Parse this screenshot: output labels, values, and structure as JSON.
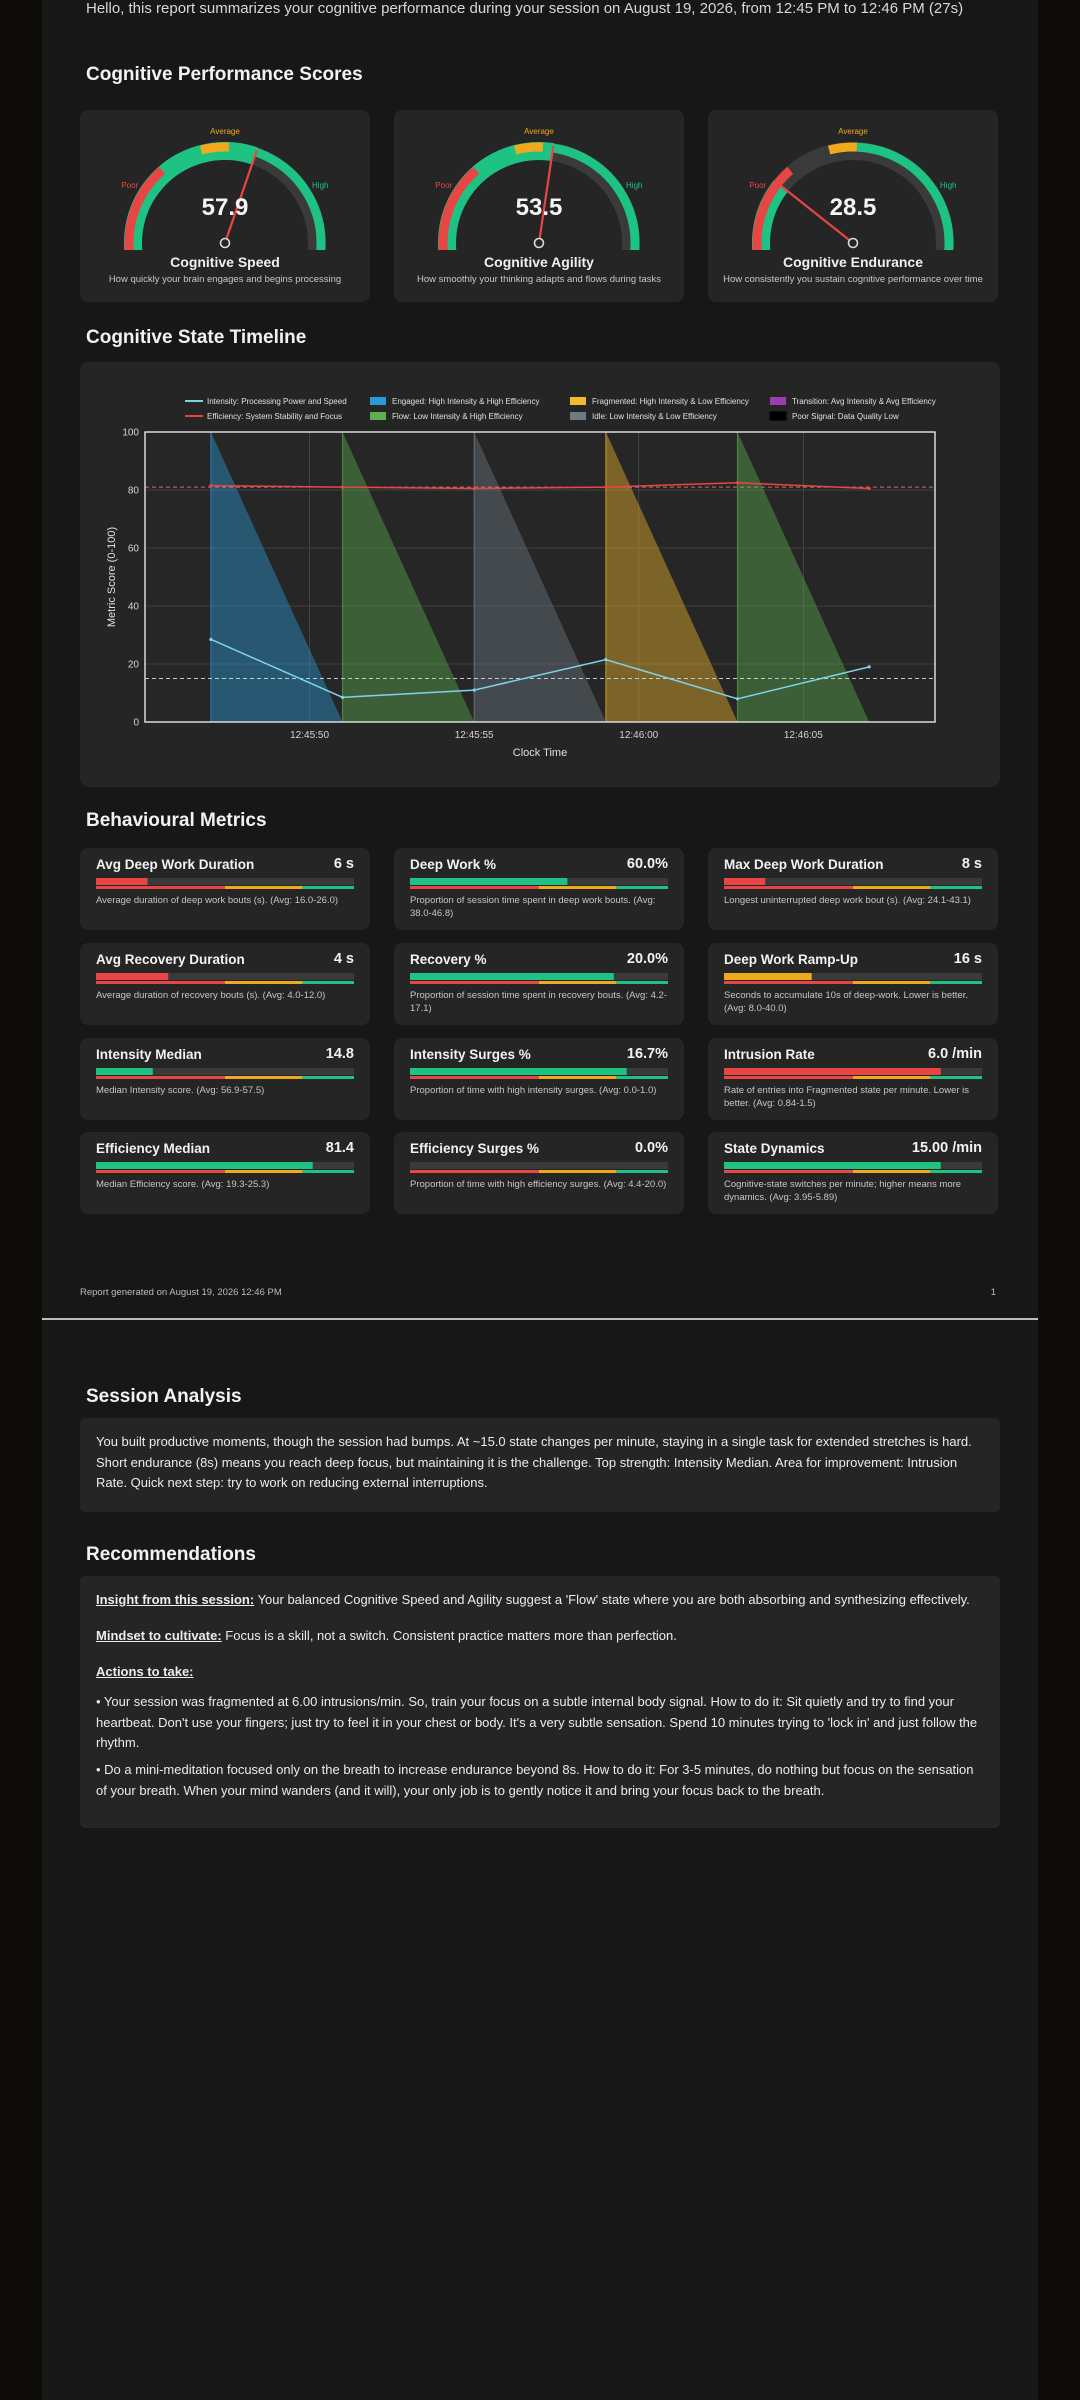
{
  "intro": "Hello, this report summarizes your cognitive performance during your session on August 19, 2026, from 12:45 PM to 12:46 PM (27s)",
  "sections": {
    "scores": "Cognitive Performance Scores",
    "timeline": "Cognitive State Timeline",
    "behaviour": "Behavioural Metrics",
    "analysis": "Session Analysis",
    "recommendations": "Recommendations"
  },
  "gauges": [
    {
      "value": "57.9",
      "score": 57.9,
      "title": "Cognitive Speed",
      "desc": "How quickly your brain engages and begins processing",
      "labels": {
        "poor": "Poor",
        "average": "Average",
        "high": "High"
      }
    },
    {
      "value": "53.5",
      "score": 53.5,
      "title": "Cognitive Agility",
      "desc": "How smoothly your thinking adapts and flows during tasks",
      "labels": {
        "poor": "Poor",
        "average": "Average",
        "high": "High"
      }
    },
    {
      "value": "28.5",
      "score": 28.5,
      "title": "Cognitive Endurance",
      "desc": "How consistently you sustain cognitive performance over time",
      "labels": {
        "poor": "Poor",
        "average": "Average",
        "high": "High"
      }
    }
  ],
  "colors": {
    "poor": "#e84545",
    "average": "#f0a81c",
    "high": "#1ec384",
    "track": "#3a3a3a",
    "engaged": "#2b9bd8",
    "flow": "#5cae4f",
    "fragmented": "#f2b92b",
    "idle": "#6c7a84",
    "transition": "#9b3cb0"
  },
  "chart_data": {
    "type": "line",
    "title": "",
    "xlabel": "Clock Time",
    "ylabel": "Metric Score (0-100)",
    "ylim": [
      0,
      100
    ],
    "yticks": [
      "0",
      "20",
      "40",
      "60",
      "80",
      "100"
    ],
    "xticks": [
      "12:45:50",
      "12:45:55",
      "12:46:00",
      "12:46:05"
    ],
    "legend": {
      "placement": "top",
      "entries": [
        {
          "label": "Intensity: Processing Power and Speed",
          "kind": "line",
          "color": "#7fd3e8"
        },
        {
          "label": "Efficiency: System Stability and Focus",
          "kind": "line",
          "color": "#e84545"
        },
        {
          "label": "Engaged: High Intensity & High Efficiency",
          "kind": "patch",
          "color": "#2b9bd8"
        },
        {
          "label": "Flow: Low Intensity & High Efficiency",
          "kind": "patch",
          "color": "#5cae4f"
        },
        {
          "label": "Fragmented: High Intensity & Low Efficiency",
          "kind": "patch",
          "color": "#f2b92b"
        },
        {
          "label": "Idle: Low Intensity & Low Efficiency",
          "kind": "patch",
          "color": "#6c7a84"
        },
        {
          "label": "Transition: Avg Intensity & Avg Efficiency",
          "kind": "patch",
          "color": "#9b3cb0"
        },
        {
          "label": "Poor Signal: Data Quality Low",
          "kind": "patch",
          "color": "#000000"
        }
      ]
    },
    "series": [
      {
        "name": "Intensity: Processing Power and Speed",
        "x": [
          "12:45:47",
          "12:45:51",
          "12:45:55",
          "12:45:59",
          "12:46:03",
          "12:46:07"
        ],
        "values": [
          28.5,
          8.5,
          11,
          21.5,
          8,
          19
        ]
      },
      {
        "name": "Efficiency: System Stability and Focus",
        "x": [
          "12:45:47",
          "12:45:51",
          "12:45:55",
          "12:45:59",
          "12:46:03",
          "12:46:07"
        ],
        "values": [
          81.5,
          81,
          80.5,
          81,
          82.5,
          80.5
        ]
      }
    ],
    "reference_lines": [
      15,
      81
    ],
    "state_segments": [
      {
        "state": "Engaged",
        "start": "12:45:47",
        "end": "12:45:51"
      },
      {
        "state": "Flow",
        "start": "12:45:51",
        "end": "12:45:55"
      },
      {
        "state": "Idle",
        "start": "12:45:55",
        "end": "12:45:59"
      },
      {
        "state": "Fragmented",
        "start": "12:45:59",
        "end": "12:46:03"
      },
      {
        "state": "Flow",
        "start": "12:46:03",
        "end": "12:46:07"
      }
    ]
  },
  "metrics": [
    {
      "title": "Avg Deep Work Duration",
      "value": "6 s",
      "desc": "Average duration of deep work bouts (s). (Avg: 16.0-26.0)",
      "fill": 0.2,
      "fill_color": "poor"
    },
    {
      "title": "Deep Work %",
      "value": "60.0%",
      "desc": "Proportion of session time spent in deep work bouts. (Avg: 38.0-46.8)",
      "fill": 0.61,
      "fill_color": "high"
    },
    {
      "title": "Max Deep Work Duration",
      "value": "8 s",
      "desc": "Longest uninterrupted deep work bout (s). (Avg: 24.1-43.1)",
      "fill": 0.16,
      "fill_color": "poor"
    },
    {
      "title": "Avg Recovery Duration",
      "value": "4 s",
      "desc": "Average duration of recovery bouts (s). (Avg: 4.0-12.0)",
      "fill": 0.28,
      "fill_color": "poor"
    },
    {
      "title": "Recovery %",
      "value": "20.0%",
      "desc": "Proportion of session time spent in recovery bouts. (Avg: 4.2-17.1)",
      "fill": 0.79,
      "fill_color": "high"
    },
    {
      "title": "Deep Work Ramp-Up",
      "value": "16 s",
      "desc": "Seconds to accumulate 10s of deep-work. Lower is better. (Avg: 8.0-40.0)",
      "fill": 0.34,
      "fill_color": "average"
    },
    {
      "title": "Intensity Median",
      "value": "14.8",
      "desc": "Median Intensity score. (Avg: 56.9-57.5)",
      "fill": 0.22,
      "fill_color": "high"
    },
    {
      "title": "Intensity Surges %",
      "value": "16.7%",
      "desc": "Proportion of time with high intensity surges. (Avg: 0.0-1.0)",
      "fill": 0.84,
      "fill_color": "high"
    },
    {
      "title": "Intrusion Rate",
      "value": "6.0 /min",
      "desc": "Rate of entries into Fragmented state per minute. Lower is better. (Avg: 0.84-1.5)",
      "fill": 0.84,
      "fill_color": "poor"
    },
    {
      "title": "Efficiency Median",
      "value": "81.4",
      "desc": "Median Efficiency score. (Avg: 19.3-25.3)",
      "fill": 0.84,
      "fill_color": "high"
    },
    {
      "title": "Efficiency Surges %",
      "value": "0.0%",
      "desc": "Proportion of time with high efficiency surges. (Avg: 4.4-20.0)",
      "fill": 0.0,
      "fill_color": "poor"
    },
    {
      "title": "State Dynamics",
      "value": "15.00 /min",
      "desc": "Cognitive-state switches per minute; higher means more dynamics. (Avg: 3.95-5.89)",
      "fill": 0.84,
      "fill_color": "high"
    }
  ],
  "footer": {
    "generated": "Report generated on August 19, 2026 12:46 PM",
    "page": "1"
  },
  "analysis": "You built productive moments, though the session had bumps. At ~15.0 state changes per minute, staying in a single task for extended stretches is hard. Short endurance (8s) means you reach deep focus, but maintaining it is the challenge. Top strength: Intensity Median. Area for improvement: Intrusion Rate. Quick next step: try to work on reducing external interruptions.",
  "recommendations": {
    "insight_label": "Insight from this session:",
    "insight": " Your balanced Cognitive Speed and Agility suggest a 'Flow' state where you are both absorbing and synthesizing effectively.",
    "mindset_label": "Mindset to cultivate:",
    "mindset": " Focus is a skill, not a switch. Consistent practice matters more than perfection.",
    "actions_label": "Actions to take:",
    "actions": [
      "• Your session was fragmented at 6.00 intrusions/min. So, train your focus on a subtle internal body signal. How to do it: Sit quietly and try to find your heartbeat. Don't use your fingers; just try to feel it in your chest or body. It's a very subtle sensation. Spend 10 minutes trying to 'lock in' and just follow the rhythm.",
      "• Do a mini-meditation focused only on the breath to increase endurance beyond 8s. How to do it: For 3-5 minutes, do nothing but focus on the sensation of your breath. When your mind wanders (and it will), your only job is to gently notice it and bring your focus back to the breath."
    ]
  }
}
